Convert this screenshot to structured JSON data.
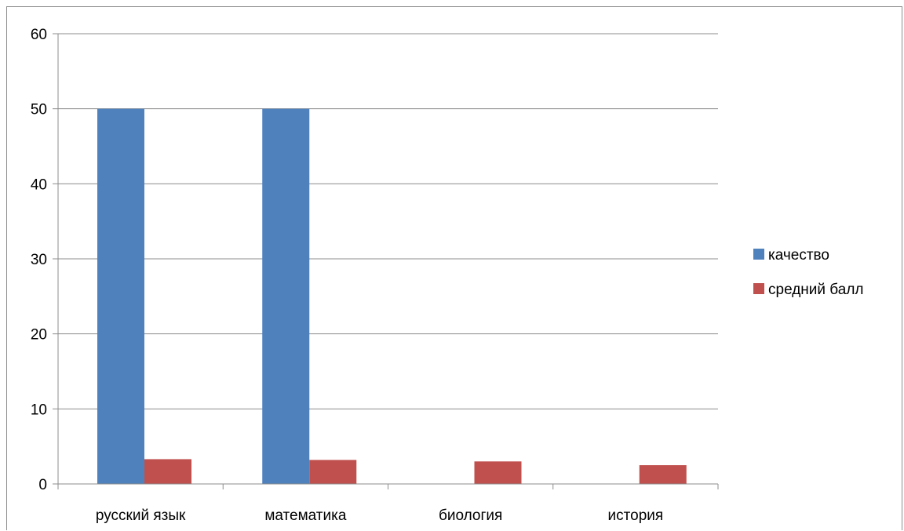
{
  "chart_data": {
    "type": "bar",
    "categories": [
      "русский язык",
      "математика",
      "биология",
      "история"
    ],
    "series": [
      {
        "name": "качество",
        "color": "#4f81bd",
        "values": [
          50,
          50,
          0,
          0
        ]
      },
      {
        "name": "средний балл",
        "color": "#c0504d",
        "values": [
          3.3,
          3.2,
          3.0,
          2.5
        ]
      }
    ],
    "ylim": [
      0,
      60
    ],
    "yticks": [
      "0",
      "10",
      "20",
      "30",
      "40",
      "50",
      "60"
    ],
    "grid": true,
    "legend_position": "right"
  }
}
